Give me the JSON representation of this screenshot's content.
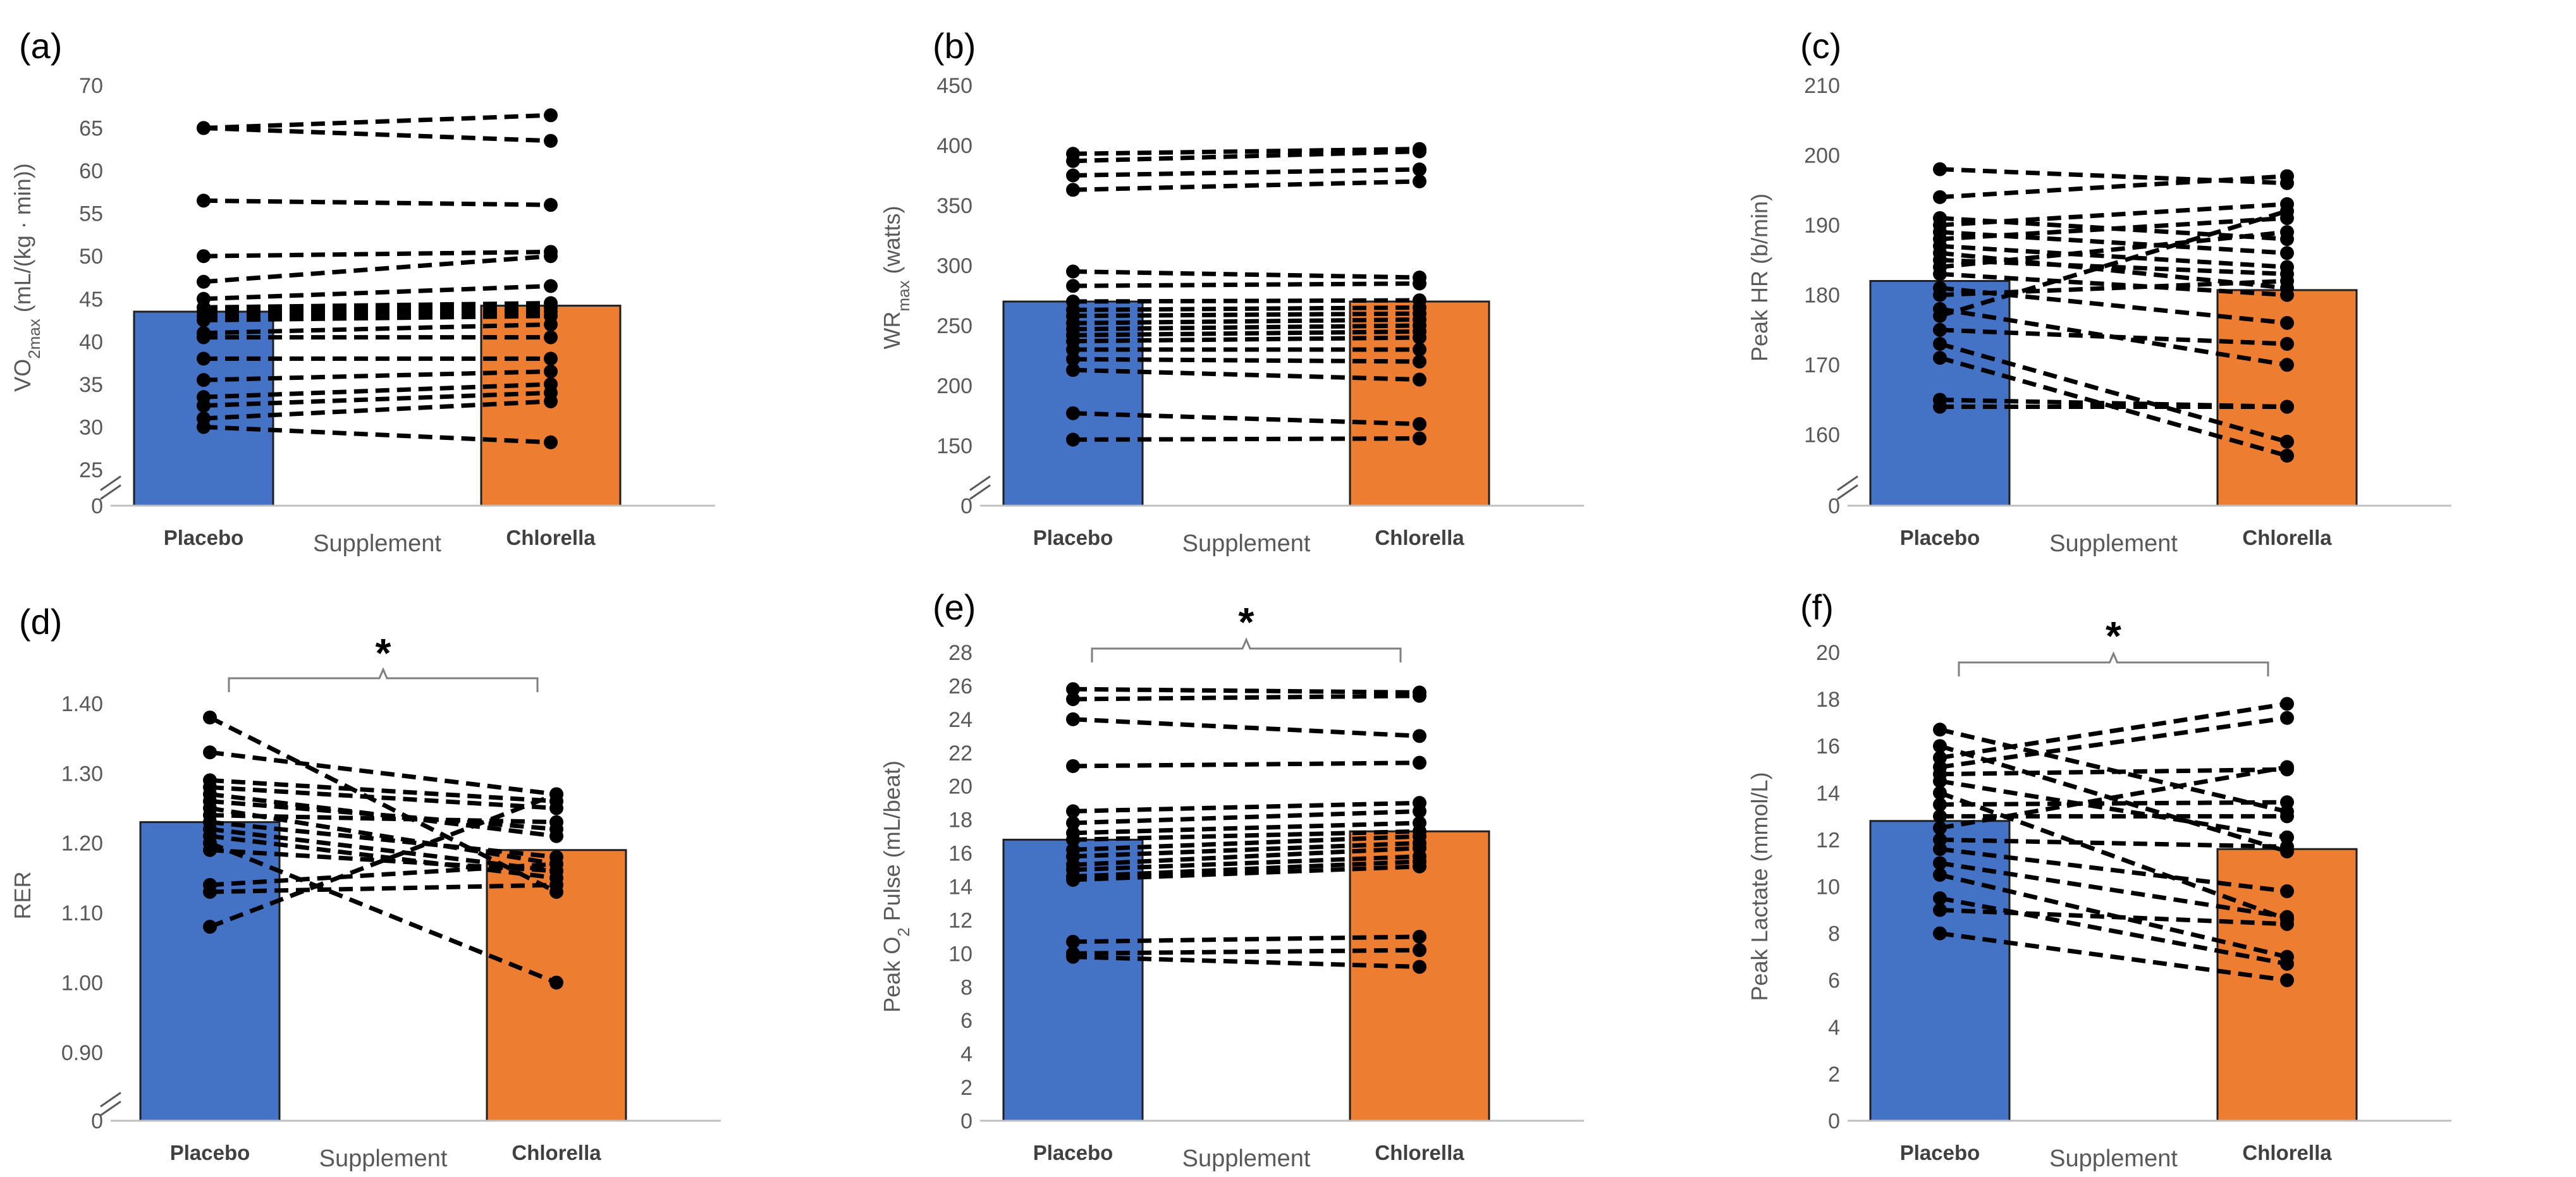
{
  "chart_data": [
    {
      "type": "bar",
      "panel": "(a)",
      "ylabel": "VO2max (mL/(kg · min))",
      "xlabel": "Supplement",
      "categories": [
        "Placebo",
        "Chlorella"
      ],
      "values": [
        43.5,
        44.2
      ],
      "yticks": [
        0,
        25,
        30,
        35,
        40,
        45,
        50,
        55,
        60,
        65,
        70
      ],
      "ylim": [
        25,
        70
      ],
      "axis_break": true,
      "bar_colors": [
        "#4472C4",
        "#ED7D31"
      ],
      "significance": false,
      "paired": [
        [
          65.0,
          66.5
        ],
        [
          65.0,
          63.5
        ],
        [
          56.5,
          56.0
        ],
        [
          50.0,
          50.5
        ],
        [
          47.0,
          50.0
        ],
        [
          45.0,
          46.5
        ],
        [
          44.0,
          44.5
        ],
        [
          43.5,
          44.0
        ],
        [
          43.0,
          43.5
        ],
        [
          42.5,
          43.0
        ],
        [
          41.0,
          42.0
        ],
        [
          40.5,
          40.5
        ],
        [
          38.0,
          38.0
        ],
        [
          35.5,
          36.5
        ],
        [
          33.5,
          35.0
        ],
        [
          32.5,
          34.0
        ],
        [
          31.0,
          33.0
        ],
        [
          30.0,
          28.2
        ]
      ]
    },
    {
      "type": "bar",
      "panel": "(b)",
      "ylabel": "WRmax (watts)",
      "xlabel": "Supplement",
      "categories": [
        "Placebo",
        "Chlorella"
      ],
      "values": [
        270,
        270
      ],
      "yticks": [
        0,
        150,
        200,
        250,
        300,
        350,
        400,
        450
      ],
      "ylim": [
        130,
        450
      ],
      "axis_break": true,
      "bar_colors": [
        "#4472C4",
        "#ED7D31"
      ],
      "significance": false,
      "paired": [
        [
          393,
          397
        ],
        [
          387,
          395
        ],
        [
          375,
          380
        ],
        [
          363,
          370
        ],
        [
          295,
          290
        ],
        [
          283,
          285
        ],
        [
          270,
          271
        ],
        [
          263,
          265
        ],
        [
          258,
          260
        ],
        [
          252,
          255
        ],
        [
          247,
          250
        ],
        [
          242,
          245
        ],
        [
          237,
          240
        ],
        [
          230,
          230
        ],
        [
          222,
          220
        ],
        [
          213,
          205
        ],
        [
          177,
          168
        ],
        [
          155,
          156
        ]
      ]
    },
    {
      "type": "bar",
      "panel": "(c)",
      "ylabel": "Peak HR (b/min)",
      "xlabel": "Supplement",
      "categories": [
        "Placebo",
        "Chlorella"
      ],
      "values": [
        182,
        180.7
      ],
      "yticks": [
        0,
        160,
        170,
        180,
        190,
        200,
        210
      ],
      "ylim": [
        155,
        210
      ],
      "axis_break": true,
      "bar_colors": [
        "#4472C4",
        "#ED7D31"
      ],
      "significance": false,
      "paired": [
        [
          198,
          196
        ],
        [
          194,
          197
        ],
        [
          191,
          188
        ],
        [
          190,
          193
        ],
        [
          189,
          186
        ],
        [
          188,
          191
        ],
        [
          187,
          184
        ],
        [
          186,
          181
        ],
        [
          185,
          183
        ],
        [
          184,
          189
        ],
        [
          183,
          180
        ],
        [
          181,
          176
        ],
        [
          180,
          182
        ],
        [
          178,
          170
        ],
        [
          177,
          192
        ],
        [
          175,
          173
        ],
        [
          173,
          159
        ],
        [
          171,
          157
        ],
        [
          165,
          164
        ],
        [
          164,
          164
        ]
      ]
    },
    {
      "type": "bar",
      "panel": "(d)",
      "ylabel": "RER",
      "xlabel": "Supplement",
      "categories": [
        "Placebo",
        "Chlorella"
      ],
      "values": [
        1.23,
        1.19
      ],
      "yticks": [
        0,
        0.9,
        1.0,
        1.1,
        1.2,
        1.3,
        1.4
      ],
      "ytick_labels": [
        "0",
        "0.90",
        "1.00",
        "1.10",
        "1.20",
        "1.30",
        "1.40"
      ],
      "ylim": [
        0.85,
        1.4
      ],
      "axis_break": true,
      "bar_colors": [
        "#4472C4",
        "#ED7D31"
      ],
      "significance": true,
      "star": "*",
      "paired": [
        [
          1.38,
          1.13
        ],
        [
          1.33,
          1.27
        ],
        [
          1.29,
          1.26
        ],
        [
          1.28,
          1.25
        ],
        [
          1.27,
          1.21
        ],
        [
          1.26,
          1.22
        ],
        [
          1.25,
          1.17
        ],
        [
          1.24,
          1.23
        ],
        [
          1.23,
          1.18
        ],
        [
          1.22,
          1.16
        ],
        [
          1.21,
          1.15
        ],
        [
          1.2,
          1.0
        ],
        [
          1.19,
          1.16
        ],
        [
          1.14,
          1.17
        ],
        [
          1.13,
          1.14
        ],
        [
          1.08,
          1.27
        ]
      ]
    },
    {
      "type": "bar",
      "panel": "(e)",
      "ylabel": "Peak O2 Pulse (mL/beat)",
      "xlabel": "Supplement",
      "categories": [
        "Placebo",
        "Chlorella"
      ],
      "values": [
        16.8,
        17.3
      ],
      "yticks": [
        0,
        2,
        4,
        6,
        8,
        10,
        12,
        14,
        16,
        18,
        20,
        22,
        24,
        26,
        28
      ],
      "ylim": [
        0,
        28
      ],
      "axis_break": false,
      "bar_colors": [
        "#4472C4",
        "#ED7D31"
      ],
      "significance": true,
      "star": "*",
      "paired": [
        [
          25.8,
          25.6
        ],
        [
          25.2,
          25.4
        ],
        [
          24.0,
          23.0
        ],
        [
          21.2,
          21.4
        ],
        [
          18.5,
          19.0
        ],
        [
          17.8,
          18.5
        ],
        [
          17.2,
          17.8
        ],
        [
          16.8,
          17.3
        ],
        [
          16.2,
          17.0
        ],
        [
          15.8,
          16.6
        ],
        [
          15.3,
          16.3
        ],
        [
          15.0,
          15.8
        ],
        [
          14.6,
          15.5
        ],
        [
          14.4,
          15.2
        ],
        [
          10.7,
          11.0
        ],
        [
          10.0,
          10.2
        ],
        [
          9.8,
          9.2
        ]
      ]
    },
    {
      "type": "bar",
      "panel": "(f)",
      "ylabel": "Peak Lactate (mmol/L)",
      "xlabel": "Supplement",
      "categories": [
        "Placebo",
        "Chlorella"
      ],
      "values": [
        12.8,
        11.6
      ],
      "yticks": [
        0,
        2,
        4,
        6,
        8,
        10,
        12,
        14,
        16,
        18,
        20
      ],
      "ylim": [
        0,
        20
      ],
      "axis_break": false,
      "bar_colors": [
        "#4472C4",
        "#ED7D31"
      ],
      "significance": true,
      "star": "*",
      "paired": [
        [
          16.7,
          13.2
        ],
        [
          16.0,
          11.5
        ],
        [
          15.5,
          17.8
        ],
        [
          15.1,
          17.2
        ],
        [
          14.8,
          15.0
        ],
        [
          14.5,
          12.1
        ],
        [
          14.0,
          8.6
        ],
        [
          13.5,
          13.6
        ],
        [
          13.0,
          13.0
        ],
        [
          12.5,
          15.1
        ],
        [
          12.0,
          11.7
        ],
        [
          11.6,
          9.8
        ],
        [
          11.0,
          8.7
        ],
        [
          10.5,
          7.0
        ],
        [
          9.5,
          6.7
        ],
        [
          9.0,
          8.4
        ],
        [
          8.0,
          6.0
        ]
      ]
    }
  ]
}
